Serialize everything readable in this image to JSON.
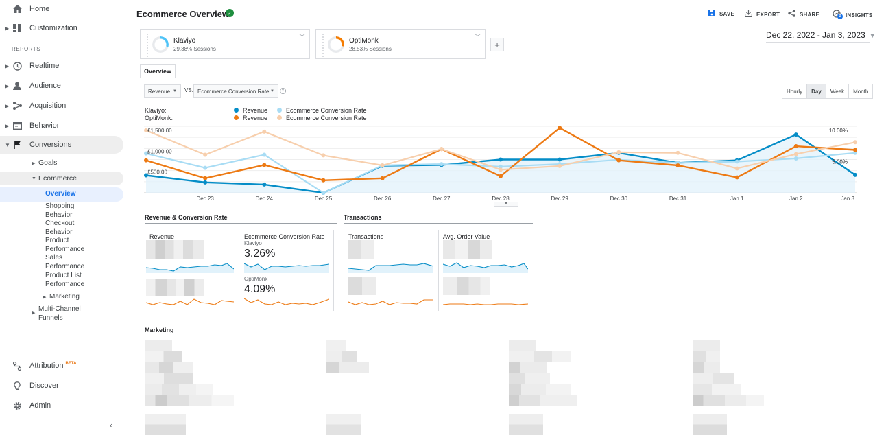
{
  "sidebar": {
    "top_items": [
      {
        "label": "Home",
        "icon": "home-icon"
      },
      {
        "label": "Customization",
        "icon": "dashboard-icon"
      }
    ],
    "reports_label": "REPORTS",
    "report_items": [
      {
        "label": "Realtime",
        "icon": "clock-icon"
      },
      {
        "label": "Audience",
        "icon": "person-icon"
      },
      {
        "label": "Acquisition",
        "icon": "acquisition-icon"
      },
      {
        "label": "Behavior",
        "icon": "behavior-icon"
      },
      {
        "label": "Conversions",
        "icon": "flag-icon"
      }
    ],
    "conversions_sub": {
      "goals": "Goals",
      "ecommerce": "Ecommerce",
      "overview": "Overview",
      "shopping_behavior": [
        "Shopping",
        "Behavior"
      ],
      "checkout_behavior": [
        "Checkout",
        "Behavior"
      ],
      "product_performance": [
        "Product",
        "Performance"
      ],
      "sales_performance": [
        "Sales",
        "Performance"
      ],
      "product_list_performance": [
        "Product List",
        "Performance"
      ],
      "marketing": "Marketing",
      "multi_channel_funnels": [
        "Multi-Channel",
        "Funnels"
      ]
    },
    "bottom_items": [
      {
        "label": "Attribution",
        "badge": "BETA",
        "icon": "attribution-icon"
      },
      {
        "label": "Discover",
        "icon": "lightbulb-icon"
      },
      {
        "label": "Admin",
        "icon": "gear-icon"
      }
    ]
  },
  "header": {
    "title": "Ecommerce Overview",
    "save": "SAVE",
    "export": "EXPORT",
    "share": "SHARE",
    "insights": "INSIGHTS",
    "insights_badge": "0"
  },
  "segments": [
    {
      "name": "Klaviyo",
      "pct": "29.38% Sessions",
      "color": "#4fc3f7",
      "fraction": 0.2938
    },
    {
      "name": "OptiMonk",
      "pct": "28.53% Sessions",
      "color": "#f57c00",
      "fraction": 0.2853
    }
  ],
  "add_segment": "+",
  "date_range": "Dec 22, 2022 - Jan 3, 2023",
  "tab_overview": "Overview",
  "metric1": "Revenue",
  "vs": "VS.",
  "metric2": "Ecommerce Conversion Rate",
  "granularity": [
    "Hourly",
    "Day",
    "Week",
    "Month"
  ],
  "legend": {
    "klaviyo_label": "Klaviyo:",
    "optimonk_label": "OptiMonk:",
    "revenue": "Revenue",
    "ecr": "Ecommerce Conversion Rate"
  },
  "chart_data": {
    "type": "line",
    "x": [
      "…",
      "Dec 23",
      "Dec 24",
      "Dec 25",
      "Dec 26",
      "Dec 27",
      "Dec 28",
      "Dec 29",
      "Dec 30",
      "Dec 31",
      "Jan 1",
      "Jan 2",
      "Jan 3"
    ],
    "y_left_ticks": [
      "£500.00",
      "£1,000.00",
      "£1,500.00"
    ],
    "y_right_ticks": [
      "5.00%",
      "10.00%"
    ],
    "ylim_left": [
      0,
      1500
    ],
    "ylim_right": [
      0,
      10
    ],
    "series": [
      {
        "name": "Revenue",
        "segment": "Klaviyo",
        "axis": "left",
        "color": "#058dc7",
        "area": true,
        "values": [
          420,
          250,
          200,
          0,
          650,
          670,
          800,
          800,
          960,
          720,
          780,
          1400,
          430
        ]
      },
      {
        "name": "Ecommerce Conversion Rate",
        "segment": "Klaviyo",
        "axis": "right",
        "color": "#a8dcf4",
        "values": [
          6.3,
          4.0,
          6.1,
          0,
          4.4,
          4.6,
          4.2,
          4.6,
          5.3,
          4.8,
          5.0,
          5.5,
          6.4
        ]
      },
      {
        "name": "Revenue",
        "segment": "OptiMonk",
        "axis": "left",
        "color": "#ed7a14",
        "values": [
          780,
          350,
          670,
          300,
          350,
          1050,
          400,
          1560,
          780,
          660,
          370,
          1120,
          1030
        ]
      },
      {
        "name": "Ecommerce Conversion Rate",
        "segment": "OptiMonk",
        "axis": "right",
        "color": "#f7cfad",
        "values": [
          10.0,
          6.1,
          9.8,
          6.0,
          4.4,
          7.0,
          3.7,
          4.3,
          6.5,
          6.4,
          3.9,
          6.2,
          8.1
        ]
      }
    ]
  },
  "sections": {
    "revenue_cr": "Revenue & Conversion Rate",
    "transactions": "Transactions",
    "marketing": "Marketing"
  },
  "cards": {
    "revenue": "Revenue",
    "ecr": "Ecommerce Conversion Rate",
    "klaviyo": "Klaviyo",
    "klaviyo_value": "3.26%",
    "optimonk": "OptiMonk",
    "optimonk_value": "4.09%",
    "transactions": "Transactions",
    "aov": "Avg. Order Value"
  }
}
